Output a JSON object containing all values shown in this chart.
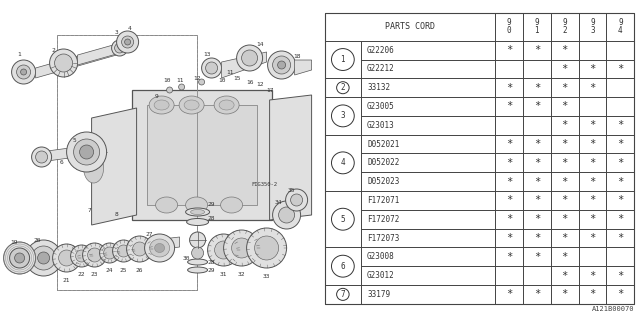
{
  "watermark": "A121B00070",
  "rows": [
    {
      "ref": "1",
      "part": "G22206",
      "cols": [
        "*",
        "*",
        "*",
        "",
        ""
      ]
    },
    {
      "ref": "",
      "part": "G22212",
      "cols": [
        "",
        "",
        "*",
        "*",
        "*"
      ]
    },
    {
      "ref": "2",
      "part": "33132",
      "cols": [
        "*",
        "*",
        "*",
        "*",
        ""
      ]
    },
    {
      "ref": "3",
      "part": "G23005",
      "cols": [
        "*",
        "*",
        "*",
        "",
        ""
      ]
    },
    {
      "ref": "",
      "part": "G23013",
      "cols": [
        "",
        "",
        "*",
        "*",
        "*"
      ]
    },
    {
      "ref": "4",
      "part": "D052021",
      "cols": [
        "*",
        "*",
        "*",
        "*",
        "*"
      ]
    },
    {
      "ref": "",
      "part": "D052022",
      "cols": [
        "*",
        "*",
        "*",
        "*",
        "*"
      ]
    },
    {
      "ref": "",
      "part": "D052023",
      "cols": [
        "*",
        "*",
        "*",
        "*",
        "*"
      ]
    },
    {
      "ref": "5",
      "part": "F172071",
      "cols": [
        "*",
        "*",
        "*",
        "*",
        "*"
      ]
    },
    {
      "ref": "",
      "part": "F172072",
      "cols": [
        "*",
        "*",
        "*",
        "*",
        "*"
      ]
    },
    {
      "ref": "",
      "part": "F172073",
      "cols": [
        "*",
        "*",
        "*",
        "*",
        "*"
      ]
    },
    {
      "ref": "6",
      "part": "G23008",
      "cols": [
        "*",
        "*",
        "*",
        "",
        ""
      ]
    },
    {
      "ref": "",
      "part": "G23012",
      "cols": [
        "",
        "",
        "*",
        "*",
        "*"
      ]
    },
    {
      "ref": "7",
      "part": "33179",
      "cols": [
        "*",
        "*",
        "*",
        "*",
        "*"
      ]
    }
  ],
  "bg_color": "#ffffff",
  "lc": "#444444",
  "tc": "#333333"
}
